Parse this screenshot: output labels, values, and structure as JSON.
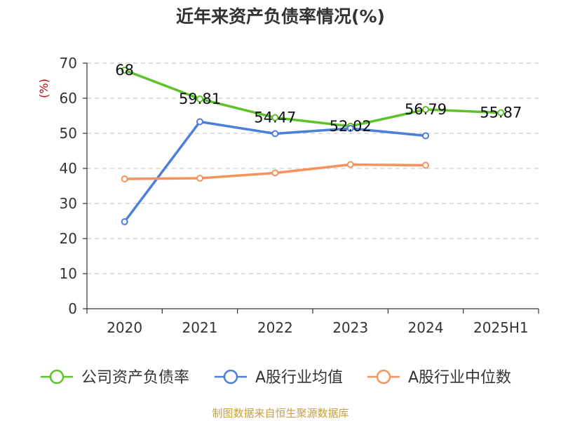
{
  "colors": {
    "company": "#5cc42a",
    "industry_avg": "#4c7fd8",
    "industry_median": "#f5925e",
    "unit_label": "#cc0000",
    "source": "#c8a040",
    "grid": "#cccccc",
    "axis": "#333333"
  },
  "source_note": "制图数据来自恒生聚源数据库",
  "chart_data": {
    "type": "line",
    "title": "近年来资产负债率情况(%)",
    "ylabel": "(%)",
    "xlabel": "",
    "ylim": [
      0,
      70
    ],
    "yticks": [
      0,
      10,
      20,
      30,
      40,
      50,
      60,
      70
    ],
    "categories": [
      "2020",
      "2021",
      "2022",
      "2023",
      "2024",
      "2025H1"
    ],
    "grid": true,
    "legend_position": "bottom",
    "series": [
      {
        "name": "公司资产负债率",
        "color": "#5cc42a",
        "values": [
          68,
          59.81,
          54.47,
          52.02,
          56.79,
          55.87
        ],
        "labels": [
          "68",
          "59.81",
          "54.47",
          "52.02",
          "56.79",
          "55.87"
        ]
      },
      {
        "name": "A股行业均值",
        "color": "#4c7fd8",
        "values": [
          24.8,
          53.3,
          49.9,
          51.4,
          49.3,
          null
        ]
      },
      {
        "name": "A股行业中位数",
        "color": "#f5925e",
        "values": [
          37.0,
          37.2,
          38.7,
          41.1,
          40.9,
          null
        ]
      }
    ]
  }
}
